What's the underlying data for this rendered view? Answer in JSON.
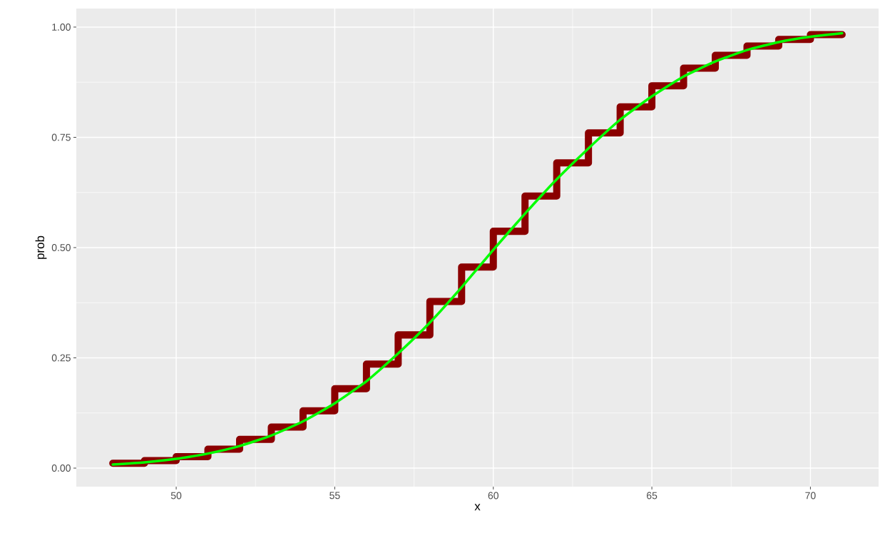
{
  "chart_data": {
    "type": "step",
    "xlabel": "x",
    "ylabel": "prob",
    "xlim": [
      46.85,
      72.15
    ],
    "ylim": [
      -0.042,
      1.042
    ],
    "xticks": [
      50,
      55,
      60,
      65,
      70
    ],
    "yticks": [
      {
        "value": 0,
        "label": "0.00"
      },
      {
        "value": 0.25,
        "label": "0.25"
      },
      {
        "value": 0.5,
        "label": "0.50"
      },
      {
        "value": 0.75,
        "label": "0.75"
      },
      {
        "value": 1,
        "label": "1.00"
      }
    ],
    "grid": true,
    "marker": "none",
    "series": [
      {
        "color": "#8b0000",
        "x": [
          48,
          49,
          50,
          51,
          52,
          53,
          54,
          55,
          56,
          57,
          58,
          59,
          60,
          61,
          62,
          63,
          64,
          65,
          66,
          67,
          68,
          69,
          70,
          71
        ],
        "values": [
          0.011,
          0.017,
          0.026,
          0.043,
          0.065,
          0.093,
          0.13,
          0.18,
          0.236,
          0.302,
          0.378,
          0.456,
          0.537,
          0.617,
          0.692,
          0.76,
          0.819,
          0.867,
          0.907,
          0.936,
          0.957,
          0.972,
          0.983,
          0.983
        ]
      },
      {
        "type": "line",
        "color": "#00ff00",
        "x": [
          48,
          49,
          50,
          51,
          52,
          53,
          54,
          55,
          56,
          57,
          58,
          59,
          60,
          61,
          62,
          63,
          64,
          65,
          66,
          67,
          68,
          69,
          70,
          71
        ],
        "values": [
          0.008,
          0.013,
          0.021,
          0.033,
          0.05,
          0.074,
          0.106,
          0.147,
          0.197,
          0.26,
          0.33,
          0.41,
          0.495,
          0.577,
          0.655,
          0.725,
          0.79,
          0.843,
          0.888,
          0.922,
          0.948,
          0.966,
          0.978,
          0.986
        ]
      }
    ]
  }
}
